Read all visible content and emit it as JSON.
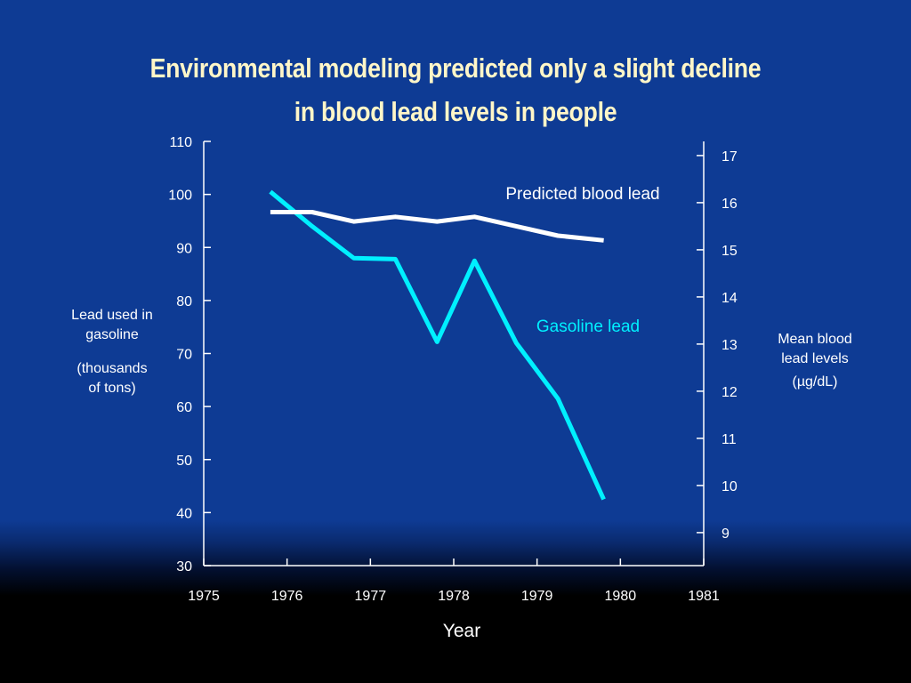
{
  "slide": {
    "title_line1": "Environmental modeling predicted only a slight decline",
    "title_line2": "in blood lead levels in people",
    "left_axis_label": {
      "line1": "Lead used in",
      "line2": "gasoline",
      "line3": "(thousands",
      "line4": "of tons)"
    },
    "right_axis_label": {
      "line1": "Mean blood",
      "line2": "lead levels",
      "line3": "(µg/dL)"
    },
    "colors": {
      "background": "#0e3b94",
      "title": "#fff6c8",
      "gasoline": "#00f0ff",
      "blood": "#ffffff"
    }
  },
  "chart_data": {
    "type": "line",
    "title": "Environmental modeling predicted only a slight decline in blood lead levels in people",
    "xlabel": "Year",
    "ylabel": "Lead used in gasoline (thousands of tons)",
    "y2label": "Mean blood lead levels (µg/dL)",
    "xlim": [
      1975,
      1981
    ],
    "ylim": [
      30,
      110
    ],
    "y2lim": [
      8.3,
      17.3
    ],
    "x_ticks": [
      "1975",
      "1976",
      "1977",
      "1978",
      "1979",
      "1980",
      "1981"
    ],
    "y_ticks": [
      "30",
      "40",
      "50",
      "60",
      "70",
      "80",
      "90",
      "100",
      "110"
    ],
    "y2_ticks": [
      "9",
      "10",
      "11",
      "12",
      "13",
      "14",
      "15",
      "16",
      "17"
    ],
    "series": [
      {
        "name": "Gasoline lead",
        "axis": "left",
        "color": "#00f0ff",
        "x": [
          1975.8,
          1976.3,
          1976.8,
          1977.3,
          1977.8,
          1978.25,
          1978.75,
          1979.25,
          1979.8
        ],
        "y": [
          100.5,
          94,
          88,
          87.8,
          72.2,
          87.5,
          72,
          61.5,
          42.5
        ]
      },
      {
        "name": "Predicted blood lead",
        "axis": "right",
        "color": "#ffffff",
        "x": [
          1975.8,
          1976.3,
          1976.8,
          1977.3,
          1977.8,
          1978.25,
          1978.75,
          1979.25,
          1979.8
        ],
        "y": [
          15.8,
          15.8,
          15.6,
          15.7,
          15.6,
          15.7,
          15.5,
          15.3,
          15.2
        ]
      }
    ]
  }
}
